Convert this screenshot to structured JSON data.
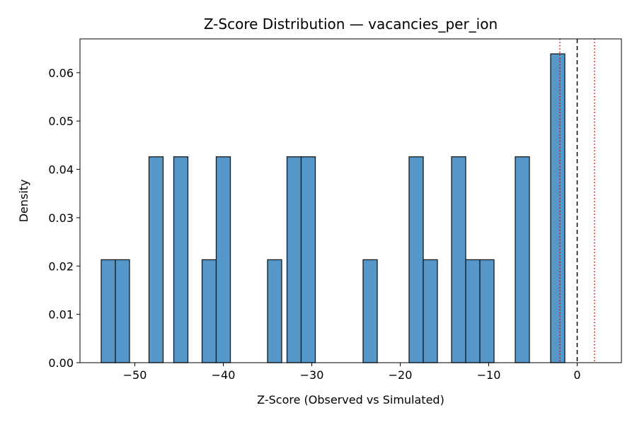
{
  "chart_data": {
    "type": "bar",
    "title": "Z-Score Distribution — vacancies_per_ion",
    "xlabel": "Z-Score (Observed vs Simulated)",
    "ylabel": "Density",
    "xlim": [
      -56.2,
      5.0
    ],
    "ylim": [
      0.0,
      0.067
    ],
    "xticks": [
      {
        "value": -50,
        "label": "−50"
      },
      {
        "value": -40,
        "label": "−40"
      },
      {
        "value": -30,
        "label": "−30"
      },
      {
        "value": -20,
        "label": "−20"
      },
      {
        "value": -10,
        "label": "−10"
      },
      {
        "value": 0,
        "label": "0"
      }
    ],
    "yticks": [
      {
        "value": 0.0,
        "label": "0.00"
      },
      {
        "value": 0.01,
        "label": "0.01"
      },
      {
        "value": 0.02,
        "label": "0.02"
      },
      {
        "value": 0.03,
        "label": "0.03"
      },
      {
        "value": 0.04,
        "label": "0.04"
      },
      {
        "value": 0.05,
        "label": "0.05"
      },
      {
        "value": 0.06,
        "label": "0.06"
      }
    ],
    "bin_width": 1.6,
    "bins": [
      {
        "x0": -53.8,
        "density": 0.0213
      },
      {
        "x0": -52.2,
        "density": 0.0213
      },
      {
        "x0": -48.4,
        "density": 0.0426
      },
      {
        "x0": -45.6,
        "density": 0.0426
      },
      {
        "x0": -42.4,
        "density": 0.0213
      },
      {
        "x0": -40.8,
        "density": 0.0426
      },
      {
        "x0": -35.0,
        "density": 0.0213
      },
      {
        "x0": -32.8,
        "density": 0.0426
      },
      {
        "x0": -31.2,
        "density": 0.0426
      },
      {
        "x0": -24.2,
        "density": 0.0213
      },
      {
        "x0": -19.0,
        "density": 0.0426
      },
      {
        "x0": -17.4,
        "density": 0.0213
      },
      {
        "x0": -14.2,
        "density": 0.0426
      },
      {
        "x0": -12.6,
        "density": 0.0213
      },
      {
        "x0": -11.0,
        "density": 0.0213
      },
      {
        "x0": -7.0,
        "density": 0.0426
      },
      {
        "x0": -3.0,
        "density": 0.0639
      }
    ],
    "reference_lines": [
      {
        "x": 0,
        "color": "#000000",
        "style": "dashed"
      },
      {
        "x": -1.96,
        "color": "#dd0000",
        "style": "dotted"
      },
      {
        "x": 1.96,
        "color": "#dd0000",
        "style": "dotted"
      }
    ],
    "bar_color": "#5497c8",
    "bar_edge_color": "#1a1a1a",
    "grid": false,
    "legend": "none"
  }
}
